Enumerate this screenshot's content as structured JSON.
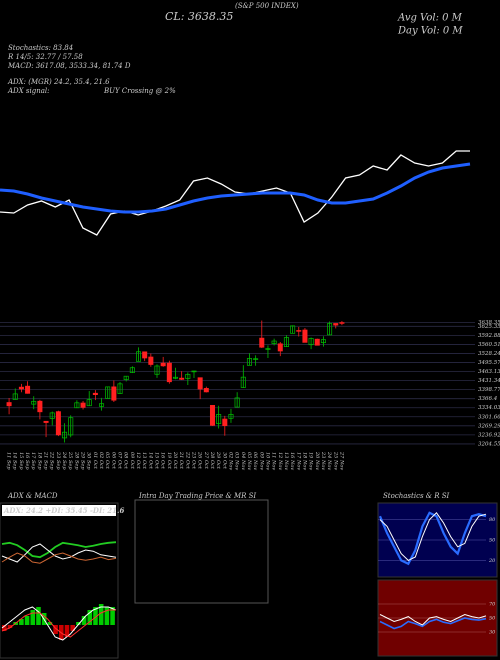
{
  "chart_data": [
    {
      "type": "line",
      "annotations": [
        "(S&P 500 INDEX)",
        "CL: 3638.35",
        "Avg Vol: 0  M",
        "Day Vol: 0  M",
        "Stochastics: 83.84",
        "R 14/5: 32.77 / 57.58",
        "MACD: 3617.08, 3533.34, 81.74  D",
        "ADX:              (MGR) 24.2, 35.4, 21.6",
        "ADX  signal:",
        "BUY Crossing @ 2%"
      ],
      "ylim": [
        0,
        100
      ],
      "series": [
        {
          "color": "#ffffff",
          "values": [
            28,
            27,
            35,
            39,
            33,
            40,
            12,
            5,
            26,
            29,
            25,
            29,
            34,
            40,
            59,
            62,
            56,
            48,
            46,
            49,
            52,
            47,
            18,
            27,
            43,
            62,
            65,
            74,
            70,
            85,
            77,
            74,
            77,
            89,
            89
          ]
        },
        {
          "color": "#1f5fff",
          "values": [
            50,
            49,
            46,
            42,
            39,
            36,
            33,
            31,
            29,
            28,
            28,
            29,
            31,
            35,
            39,
            42,
            44,
            45,
            46,
            47,
            47,
            47,
            45,
            40,
            37,
            37,
            39,
            41,
            47,
            54,
            62,
            68,
            72,
            74,
            76
          ]
        }
      ]
    },
    {
      "type": "candlestick",
      "categories": [
        "11 Sep",
        "14 Sep",
        "15 Sep",
        "16 Sep",
        "17 Sep",
        "18 Sep",
        "21 Sep",
        "22 Sep",
        "23 Sep",
        "24 Sep",
        "25 Sep",
        "28 Sep",
        "29 Sep",
        "30 Sep",
        "01 Oct",
        "02 Oct",
        "05 Oct",
        "06 Oct",
        "07 Oct",
        "08 Oct",
        "09 Oct",
        "12 Oct",
        "13 Oct",
        "14 Oct",
        "15 Oct",
        "16 Oct",
        "19 Oct",
        "20 Oct",
        "21 Oct",
        "22 Oct",
        "23 Oct",
        "26 Oct",
        "27 Oct",
        "28 Oct",
        "29 Oct",
        "30 Oct",
        "02 Nov",
        "03 Nov",
        "04 Nov",
        "05 Nov",
        "06 Nov",
        "09 Nov",
        "10 Nov",
        "11 Nov",
        "12 Nov",
        "13 Nov",
        "16 Nov",
        "17 Nov",
        "18 Nov",
        "19 Nov",
        "20 Nov",
        "23 Nov",
        "24 Nov",
        "25 Nov",
        "27 Nov"
      ],
      "open": [
        3352.7,
        3363.6,
        3407.7,
        3411.2,
        3346.9,
        3357.4,
        3285.6,
        3295.8,
        3320.1,
        3226.1,
        3236.7,
        3333.9,
        3350.9,
        3341.2,
        3385.9,
        3338.9,
        3367.3,
        3408.7,
        3384.6,
        3434.3,
        3459.7,
        3500.0,
        3534.0,
        3515.5,
        3453.7,
        3493.5,
        3493.7,
        3439.4,
        3439.9,
        3438.5,
        3464.9,
        3441.4,
        3403.2,
        3342.5,
        3277.2,
        3293.6,
        3296.2,
        3336.3,
        3406.5,
        3485.7,
        3508.3,
        3583.0,
        3543.3,
        3563.2,
        3562.7,
        3552.6,
        3600.2,
        3610.3,
        3612.1,
        3559.4,
        3579.3,
        3566.8,
        3594.5,
        3635.5,
        3638.6
      ],
      "high": [
        3368.9,
        3402.9,
        3419.5,
        3428.9,
        3375.2,
        3362.3,
        3285.6,
        3320.3,
        3323.4,
        3278.7,
        3306.9,
        3360.7,
        3357.9,
        3393.6,
        3397.2,
        3369.1,
        3409.6,
        3431.6,
        3426.3,
        3447.3,
        3482.3,
        3549.9,
        3534.0,
        3527.9,
        3489.1,
        3515.8,
        3502.4,
        3476.9,
        3464.9,
        3460.5,
        3466.5,
        3441.4,
        3409.5,
        3342.5,
        3341.1,
        3304.9,
        3330.1,
        3389.5,
        3486.3,
        3529.1,
        3521.6,
        3645.9,
        3557.2,
        3581.2,
        3569.0,
        3593.7,
        3628.5,
        3623.1,
        3619.1,
        3585.2,
        3581.2,
        3589.8,
        3642.3,
        3635.5,
        3644.3
      ],
      "low": [
        3310.5,
        3363.6,
        3389.3,
        3384.5,
        3328.8,
        3292.4,
        3229.1,
        3270.9,
        3232.6,
        3209.5,
        3228.4,
        3332.9,
        3327.5,
        3340.5,
        3361.4,
        3323.7,
        3367.3,
        3354.5,
        3384.6,
        3428.2,
        3458.1,
        3499.6,
        3500.9,
        3480.6,
        3440.9,
        3480.5,
        3419.9,
        3435.7,
        3433.1,
        3415.3,
        3440.5,
        3364.9,
        3388.7,
        3268.9,
        3259.8,
        3233.9,
        3279.7,
        3336.3,
        3405.2,
        3485.7,
        3484.3,
        3547.5,
        3511.9,
        3557.0,
        3518.6,
        3552.6,
        3600.2,
        3588.7,
        3567.3,
        3543.8,
        3556.9,
        3552.8,
        3594.5,
        3617.8,
        3629.3
      ],
      "close": [
        3340.97,
        3383.54,
        3401.2,
        3385.49,
        3357.01,
        3319.47,
        3281.06,
        3315.57,
        3236.92,
        3246.59,
        3298.46,
        3351.6,
        3335.47,
        3363.0,
        3380.8,
        3348.42,
        3408.6,
        3360.97,
        3419.44,
        3446.83,
        3477.14,
        3534.22,
        3511.93,
        3488.67,
        3483.34,
        3483.81,
        3426.92,
        3443.12,
        3435.56,
        3453.49,
        3465.39,
        3400.97,
        3390.68,
        3271.03,
        3310.11,
        3269.96,
        3310.24,
        3369.16,
        3443.44,
        3510.45,
        3509.44,
        3550.5,
        3545.53,
        3572.66,
        3537.01,
        3585.15,
        3626.91,
        3609.53,
        3567.79,
        3581.87,
        3557.54,
        3577.59,
        3635.41,
        3629.65,
        3638.35
      ],
      "up_color": "#00c000",
      "down_color": "#ff2020",
      "ylim": [
        3190,
        3655
      ],
      "yticks": [
        3638.35,
        3625.35,
        3592.88,
        3560.51,
        3528.24,
        3495.57,
        3463.13,
        3431.34,
        3398.77,
        3366.4,
        3334.03,
        3301.66,
        3269.29,
        3236.92,
        3204.55
      ],
      "grid": true
    },
    {
      "type": "adxmacd",
      "title": "ADX  & MACD",
      "subtitle": "ADX: 24.2  +DI: 35.45  -DI: 21.6",
      "ylim": [
        0,
        100
      ],
      "series": [
        {
          "color": "#22cc22",
          "values": [
            60,
            62,
            58,
            50,
            40,
            38,
            45,
            55,
            62,
            60,
            58,
            55,
            57,
            60,
            62,
            63
          ]
        },
        {
          "color": "#ffffff",
          "values": [
            40,
            35,
            30,
            42,
            55,
            60,
            50,
            40,
            35,
            38,
            45,
            50,
            48,
            42,
            40,
            38
          ]
        },
        {
          "color": "#cc6633",
          "values": [
            30,
            38,
            45,
            40,
            30,
            28,
            35,
            42,
            45,
            40,
            35,
            33,
            35,
            38,
            34,
            36
          ]
        }
      ],
      "macd_ylim": [
        -10,
        10
      ],
      "macd_values": [
        -2,
        -1,
        1,
        2,
        3,
        5,
        6,
        4,
        1,
        -3,
        -5,
        -4,
        -2,
        1,
        3,
        5,
        6,
        7,
        6,
        6
      ],
      "macd_series": [
        {
          "color": "#ffffff",
          "values": [
            -1,
            1,
            3,
            5,
            6,
            4,
            0,
            -4,
            -5,
            -3,
            0,
            3,
            5,
            6,
            6,
            5
          ]
        },
        {
          "color": "#ff3030",
          "values": [
            -2,
            -1,
            1,
            3,
            4,
            4,
            2,
            -1,
            -3,
            -4,
            -2,
            0,
            2,
            4,
            5,
            5
          ]
        }
      ]
    },
    {
      "type": "empty",
      "title": "Intra  Day Trading Price  & MR                    SI"
    },
    {
      "type": "stochastics",
      "title": "Stochastics & R                    SI",
      "ylim": [
        0,
        100
      ],
      "yticks": [
        80,
        50,
        20
      ],
      "series": [
        {
          "color": "#2a6cff",
          "values": [
            85,
            60,
            40,
            20,
            15,
            35,
            70,
            90,
            85,
            60,
            40,
            30,
            60,
            85,
            88,
            85
          ]
        },
        {
          "color": "#ffffff",
          "values": [
            80,
            70,
            50,
            30,
            20,
            25,
            55,
            80,
            90,
            75,
            55,
            40,
            45,
            70,
            85,
            88
          ]
        }
      ],
      "rsi_ylim": [
        0,
        100
      ],
      "rsi_yticks": [
        70,
        50,
        30
      ],
      "rsi_series": [
        {
          "color": "#ffffff",
          "values": [
            55,
            50,
            45,
            48,
            52,
            45,
            40,
            50,
            52,
            48,
            45,
            50,
            55,
            52,
            50,
            53
          ]
        },
        {
          "color": "#2a6cff",
          "values": [
            45,
            40,
            35,
            38,
            45,
            42,
            38,
            45,
            48,
            44,
            42,
            46,
            50,
            48,
            47,
            49
          ]
        }
      ]
    }
  ]
}
